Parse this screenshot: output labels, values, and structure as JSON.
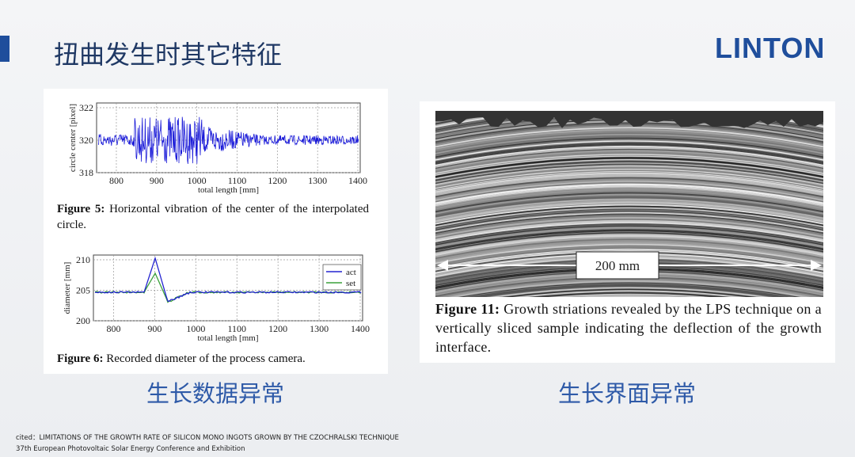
{
  "header": {
    "title": "扭曲发生时其它特征",
    "logo": "LINTON"
  },
  "figure5": {
    "y_label": "circle center [pixel]",
    "x_label": "total length [mm]",
    "yticks": [
      322,
      320,
      318
    ],
    "xticks": [
      800,
      900,
      1000,
      1100,
      1200,
      1300,
      1400
    ],
    "caption_label": "Figure 5:",
    "caption": "Horizontal vibration of the center of the interpolated circle."
  },
  "figure6": {
    "y_label": "diameter [mm]",
    "x_label": "total length [mm]",
    "yticks": [
      210,
      205,
      200
    ],
    "xticks": [
      800,
      900,
      1000,
      1100,
      1200,
      1300,
      1400
    ],
    "legend": [
      "act",
      "set"
    ],
    "caption_label": "Figure 6:",
    "caption": "Recorded diameter of the process camera."
  },
  "figure11": {
    "scale_label": "200 mm",
    "caption_label": "Figure 11:",
    "caption": "Growth striations revealed by the LPS technique on a vertically sliced sample indicating the deflection of the growth interface."
  },
  "labels": [
    "生长数据异常",
    "生长界面异常"
  ],
  "citation": [
    "cited：LIMITATIONS OF THE GROWTH RATE OF SILICON MONO INGOTS GROWN BY THE CZOCHRALSKI TECHNIQUE",
    "37th European Photovoltaic Solar Energy Conference and Exhibition"
  ]
}
